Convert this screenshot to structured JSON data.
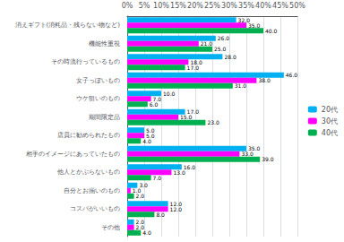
{
  "chart_data": {
    "type": "bar",
    "orientation": "horizontal",
    "categories": [
      "消えギフト(消耗品・残らない物など)",
      "機能性重視",
      "その時流行っているもの",
      "女子っぽいもの",
      "ウケ狙いのもの",
      "期間限定品",
      "店員に勧められたもの",
      "相手のイメージにあっていたもの",
      "他人とかぶらないもの",
      "自分とお揃いのもの",
      "コスパがいいもの",
      "その他"
    ],
    "series": [
      {
        "name": "20代",
        "color": "#00b0f0",
        "values": [
          32,
          26,
          28,
          46,
          10,
          17,
          5,
          35,
          16,
          3,
          12,
          2
        ],
        "value_labels": [
          "32.0",
          "26.0",
          "28.0",
          "46.0",
          "10.0",
          "17.0",
          "5.0",
          "35.0",
          "16.0",
          "3.0",
          "12.0",
          "2.0"
        ]
      },
      {
        "name": "30代",
        "color": "#ff00ff",
        "values": [
          35,
          21,
          18,
          38,
          7,
          15,
          5,
          33,
          13,
          1,
          12,
          2
        ],
        "value_labels": [
          "35.0",
          "21.0",
          "18.0",
          "38.0",
          "7.0",
          "15.0",
          "5.0",
          "33.0",
          "13.0",
          "1.0",
          "12.0",
          "2.0"
        ]
      },
      {
        "name": "40代",
        "color": "#00b050",
        "values": [
          40,
          25,
          17,
          31,
          6,
          23,
          4,
          39,
          7,
          2,
          8,
          4
        ],
        "value_labels": [
          "40.0",
          "25.0",
          "17.0",
          "31.0",
          "6.0",
          "23.0",
          "4.0",
          "39.0",
          "7.0",
          "2.0",
          "8.0",
          "4.0"
        ]
      }
    ],
    "xlim": [
      0,
      50
    ],
    "xticks": [
      {
        "value": 0,
        "label": "0%"
      },
      {
        "value": 5,
        "label": "5%"
      },
      {
        "value": 10,
        "label": "10%"
      },
      {
        "value": 15,
        "label": "15%"
      },
      {
        "value": 20,
        "label": "20%"
      },
      {
        "value": 25,
        "label": "25%"
      },
      {
        "value": 30,
        "label": "30%"
      },
      {
        "value": 35,
        "label": "35%"
      },
      {
        "value": 40,
        "label": "40%"
      },
      {
        "value": 45,
        "label": "45%"
      },
      {
        "value": 50,
        "label": "50%"
      }
    ],
    "grid": true,
    "legend": "right",
    "data_labels": true
  }
}
